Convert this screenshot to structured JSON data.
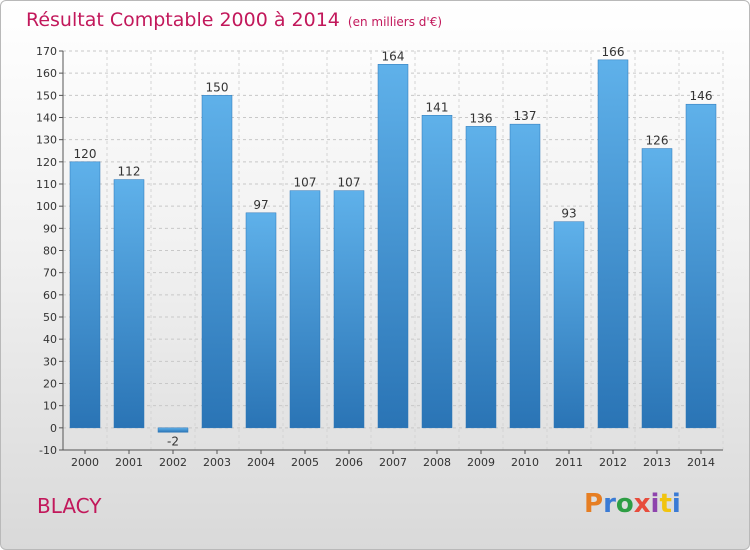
{
  "chart_data": {
    "type": "bar",
    "title": "Résultat Comptable 2000 à 2014",
    "subtitle": "(en milliers d'€)",
    "categories": [
      "2000",
      "2001",
      "2002",
      "2003",
      "2004",
      "2005",
      "2006",
      "2007",
      "2008",
      "2009",
      "2010",
      "2011",
      "2012",
      "2013",
      "2014"
    ],
    "values": [
      120,
      112,
      -2,
      150,
      97,
      107,
      107,
      164,
      141,
      136,
      137,
      93,
      166,
      126,
      146
    ],
    "ylim": [
      -10,
      170
    ],
    "ytick_step": 10,
    "grid": true,
    "bar_color": "#3d8fd0"
  },
  "footer": {
    "town": "BLACY",
    "logo": "Proxiti"
  },
  "colors": {
    "title": "#c2185b",
    "logo_letters": [
      "#e67e22",
      "#3a7bd5",
      "#2e9e44",
      "#e74c3c",
      "#8e44ad",
      "#f1c40f",
      "#3a7bd5"
    ]
  }
}
